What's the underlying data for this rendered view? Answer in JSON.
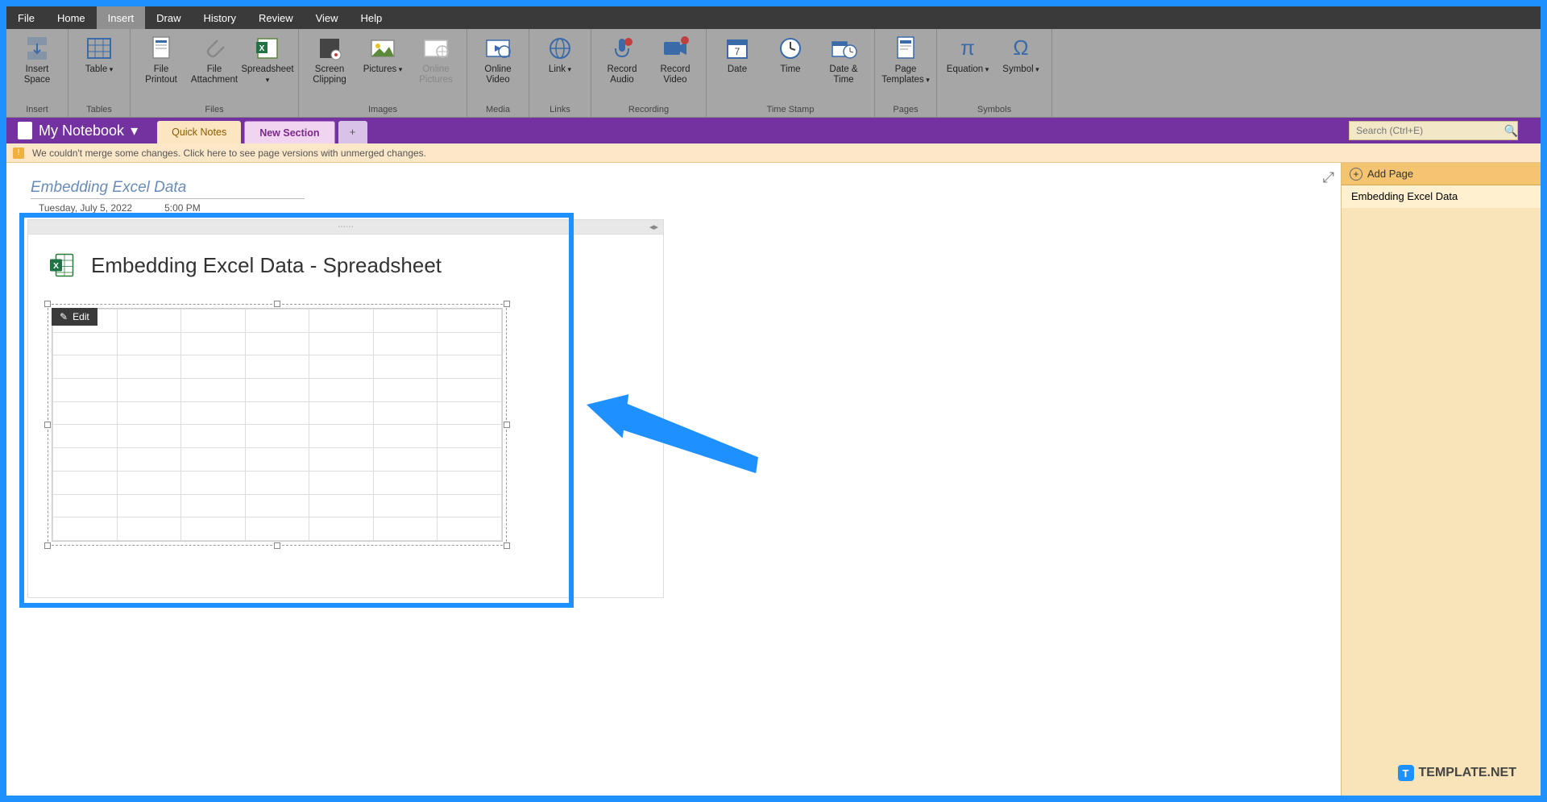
{
  "colors": {
    "frame_border": "#1e90ff",
    "menubar_bg": "#3a3a3a",
    "ribbon_bg": "#a6a6a6",
    "notebook_bar_bg": "#7432a0",
    "section_quick_bg": "#fce6c2",
    "section_new_bg": "#f0d4f0",
    "warn_bg": "#fce8c8",
    "side_bg": "#f8e4b8",
    "add_page_bg": "#f4c470",
    "arrow_color": "#1e90ff",
    "title_color": "#6a8cb8"
  },
  "menubar": {
    "items": [
      "File",
      "Home",
      "Insert",
      "Draw",
      "History",
      "Review",
      "View",
      "Help"
    ],
    "active_index": 2
  },
  "ribbon": {
    "groups": [
      {
        "label": "Insert",
        "buttons": [
          {
            "label": "Insert\nSpace",
            "icon": "insert-space"
          }
        ]
      },
      {
        "label": "Tables",
        "buttons": [
          {
            "label": "Table",
            "icon": "table",
            "dropdown": true
          }
        ]
      },
      {
        "label": "Files",
        "buttons": [
          {
            "label": "File\nPrintout",
            "icon": "file-printout"
          },
          {
            "label": "File\nAttachment",
            "icon": "attachment"
          },
          {
            "label": "Spreadsheet",
            "icon": "spreadsheet",
            "dropdown": true
          }
        ]
      },
      {
        "label": "Images",
        "buttons": [
          {
            "label": "Screen\nClipping",
            "icon": "clipping"
          },
          {
            "label": "Pictures",
            "icon": "pictures",
            "dropdown": true
          },
          {
            "label": "Online\nPictures",
            "icon": "online-pictures",
            "disabled": true
          }
        ]
      },
      {
        "label": "Media",
        "buttons": [
          {
            "label": "Online\nVideo",
            "icon": "online-video"
          }
        ]
      },
      {
        "label": "Links",
        "buttons": [
          {
            "label": "Link",
            "icon": "link",
            "dropdown": true
          }
        ]
      },
      {
        "label": "Recording",
        "buttons": [
          {
            "label": "Record\nAudio",
            "icon": "record-audio"
          },
          {
            "label": "Record\nVideo",
            "icon": "record-video"
          }
        ]
      },
      {
        "label": "Time Stamp",
        "buttons": [
          {
            "label": "Date",
            "icon": "date"
          },
          {
            "label": "Time",
            "icon": "time"
          },
          {
            "label": "Date &\nTime",
            "icon": "date-time"
          }
        ]
      },
      {
        "label": "Pages",
        "buttons": [
          {
            "label": "Page\nTemplates",
            "icon": "templates",
            "dropdown": true
          }
        ]
      },
      {
        "label": "Symbols",
        "buttons": [
          {
            "label": "Equation",
            "icon": "equation",
            "dropdown": true
          },
          {
            "label": "Symbol",
            "icon": "symbol",
            "dropdown": true
          }
        ]
      }
    ]
  },
  "notebook": {
    "name": "My Notebook",
    "tabs": {
      "quick": "Quick Notes",
      "new_section": "New Section",
      "add": "+"
    },
    "search_placeholder": "Search (Ctrl+E)"
  },
  "warning": {
    "text": "We couldn't merge some changes. Click here to see page versions with unmerged changes."
  },
  "page": {
    "title": "Embedding Excel Data",
    "date": "Tuesday, July 5, 2022",
    "time": "5:00 PM",
    "embed_title": "Embedding Excel Data - Spreadsheet",
    "edit_label": "Edit",
    "sheet": {
      "rows": 10,
      "cols": 7
    }
  },
  "side": {
    "add_page": "Add Page",
    "pages": [
      "Embedding Excel Data"
    ],
    "active_index": 0
  },
  "watermark": {
    "text": "TEMPLATE.NET"
  }
}
